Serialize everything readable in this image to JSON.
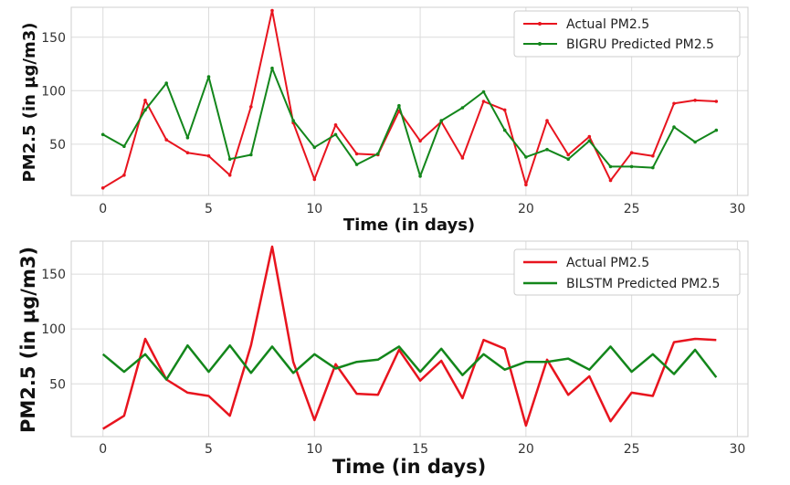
{
  "chart_data": [
    {
      "type": "line",
      "title": "",
      "xlabel": "Time (in days)",
      "ylabel": "PM2.5 (in µg/m3)",
      "xlim": [
        -1.5,
        30.5
      ],
      "ylim": [
        2,
        178
      ],
      "xticks": [
        0,
        5,
        10,
        15,
        20,
        25,
        30
      ],
      "yticks": [
        50,
        100,
        150
      ],
      "grid": true,
      "legend_position": "top-right",
      "x": [
        0,
        1,
        2,
        3,
        4,
        5,
        6,
        7,
        8,
        9,
        10,
        11,
        12,
        13,
        14,
        15,
        16,
        17,
        18,
        19,
        20,
        21,
        22,
        23,
        24,
        25,
        26,
        27,
        28,
        29
      ],
      "series": [
        {
          "name": "Actual PM2.5",
          "color": "#e8141e",
          "marker": true,
          "values": [
            9,
            21,
            91,
            54,
            42,
            39,
            21,
            85,
            175,
            70,
            17,
            68,
            41,
            40,
            81,
            53,
            71,
            37,
            90,
            82,
            12,
            72,
            40,
            57,
            16,
            42,
            39,
            88,
            91,
            90
          ]
        },
        {
          "name": "BIGRU Predicted PM2.5",
          "color": "#13861b",
          "marker": true,
          "values": [
            59,
            48,
            82,
            107,
            56,
            113,
            36,
            40,
            121,
            72,
            47,
            59,
            31,
            41,
            86,
            20,
            72,
            84,
            99,
            63,
            38,
            45,
            36,
            53,
            29,
            29,
            28,
            66,
            52,
            63
          ]
        }
      ]
    },
    {
      "type": "line",
      "title": "",
      "xlabel": "Time (in days)",
      "ylabel": "PM2.5 (in µg/m3)",
      "xlim": [
        -1.5,
        30.5
      ],
      "ylim": [
        2,
        180
      ],
      "xticks": [
        0,
        5,
        10,
        15,
        20,
        25,
        30
      ],
      "yticks": [
        50,
        100,
        150
      ],
      "grid": true,
      "legend_position": "top-right",
      "x": [
        0,
        1,
        2,
        3,
        4,
        5,
        6,
        7,
        8,
        9,
        10,
        11,
        12,
        13,
        14,
        15,
        16,
        17,
        18,
        19,
        20,
        21,
        22,
        23,
        24,
        25,
        26,
        27,
        28,
        29
      ],
      "series": [
        {
          "name": "Actual PM2.5",
          "color": "#e8141e",
          "marker": false,
          "values": [
            9,
            21,
            91,
            54,
            42,
            39,
            21,
            85,
            175,
            70,
            17,
            68,
            41,
            40,
            81,
            53,
            71,
            37,
            90,
            82,
            12,
            72,
            40,
            57,
            16,
            42,
            39,
            88,
            91,
            90
          ]
        },
        {
          "name": "BILSTM Predicted PM2.5",
          "color": "#13861b",
          "marker": false,
          "values": [
            77,
            61,
            77,
            54,
            85,
            61,
            85,
            60,
            84,
            60,
            77,
            64,
            70,
            72,
            84,
            61,
            82,
            58,
            77,
            63,
            70,
            70,
            73,
            63,
            84,
            61,
            77,
            59,
            81,
            56
          ]
        }
      ]
    }
  ]
}
